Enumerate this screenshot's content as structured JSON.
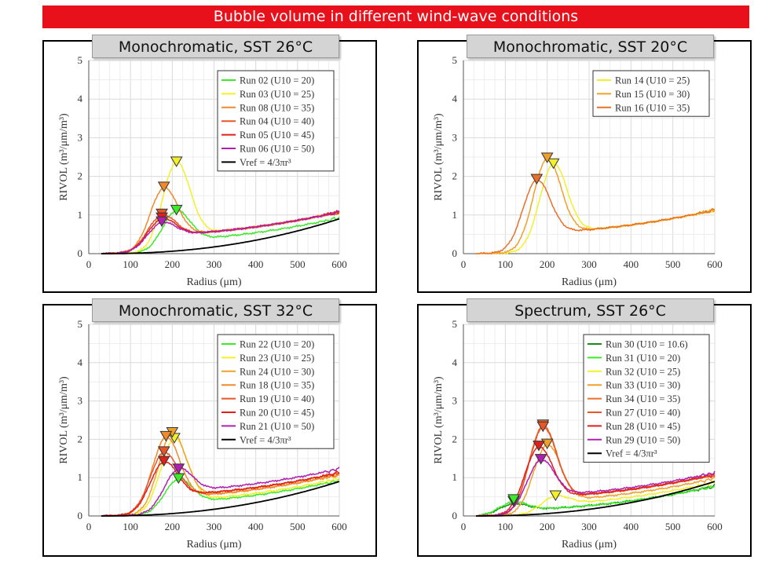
{
  "banner": "Bubble volume in different wind-wave conditions",
  "common": {
    "xlabel": "Radius (μm)",
    "ylabel": "RIVOL (m³/μm/m³)",
    "xlim": [
      0,
      600
    ],
    "ylim": [
      0,
      5
    ],
    "xticks": [
      "0",
      "100",
      "200",
      "300",
      "400",
      "500",
      "600"
    ],
    "yticks": [
      "0",
      "1",
      "2",
      "3",
      "4",
      "5"
    ]
  },
  "chart_data": [
    {
      "type": "line",
      "title": "Monochromatic, SST 26°C",
      "xlabel": "Radius (μm)",
      "ylabel": "RIVOL (m³/μm/m³)",
      "xlim": [
        0,
        600
      ],
      "ylim": [
        0,
        5
      ],
      "legend": "top-right",
      "series": [
        {
          "name": "Run 02 (U10 = 20)",
          "color": "#3cea2a",
          "peak": [
            210,
            1.05
          ],
          "valley": 0.3
        },
        {
          "name": "Run 03 (U10 = 25)",
          "color": "#f2f02a",
          "peak": [
            210,
            2.3
          ],
          "valley": 0.45
        },
        {
          "name": "Run 08 (U10 = 35)",
          "color": "#f08a2a",
          "peak": [
            180,
            1.65
          ],
          "valley": 0.45
        },
        {
          "name": "Run 04 (U10 = 40)",
          "color": "#e8552a",
          "peak": [
            175,
            0.95
          ],
          "valley": 0.45
        },
        {
          "name": "Run 05 (U10 = 45)",
          "color": "#e0201a",
          "peak": [
            175,
            0.85
          ],
          "valley": 0.45
        },
        {
          "name": "Run 06 (U10 = 50)",
          "color": "#b020b0",
          "peak": [
            175,
            0.75
          ],
          "valley": 0.45
        },
        {
          "name": "Vref = 4/3πr³",
          "color": "#000000",
          "ref": true
        }
      ]
    },
    {
      "type": "line",
      "title": "Monochromatic, SST 20°C",
      "xlabel": "Radius (μm)",
      "ylabel": "RIVOL (m³/μm/m³)",
      "xlim": [
        0,
        600
      ],
      "ylim": [
        0,
        5
      ],
      "legend": "top-right",
      "series": [
        {
          "name": "Run 14 (U10 = 25)",
          "color": "#f2f02a",
          "peak": [
            215,
            2.25
          ],
          "valley": 0.5
        },
        {
          "name": "Run 15 (U10 = 30)",
          "color": "#f0a02a",
          "peak": [
            200,
            2.4
          ],
          "valley": 0.5
        },
        {
          "name": "Run 16 (U10 = 35)",
          "color": "#e8702a",
          "peak": [
            175,
            1.85
          ],
          "valley": 0.5
        }
      ]
    },
    {
      "type": "line",
      "title": "Monochromatic, SST 32°C",
      "xlabel": "Radius (μm)",
      "ylabel": "RIVOL (m³/μm/m³)",
      "xlim": [
        0,
        600
      ],
      "ylim": [
        0,
        5
      ],
      "legend": "top-right",
      "series": [
        {
          "name": "Run 22 (U10 = 20)",
          "color": "#3cea2a",
          "peak": [
            215,
            0.9
          ],
          "valley": 0.3
        },
        {
          "name": "Run 23 (U10 = 25)",
          "color": "#f2f02a",
          "peak": [
            205,
            1.95
          ],
          "valley": 0.35
        },
        {
          "name": "Run 24 (U10 = 30)",
          "color": "#f0a02a",
          "peak": [
            200,
            2.1
          ],
          "valley": 0.45
        },
        {
          "name": "Run 18 (U10 = 35)",
          "color": "#f08a2a",
          "peak": [
            185,
            2.0
          ],
          "valley": 0.45
        },
        {
          "name": "Run 19 (U10 = 40)",
          "color": "#e8552a",
          "peak": [
            180,
            1.6
          ],
          "valley": 0.5
        },
        {
          "name": "Run 20 (U10 = 45)",
          "color": "#e0201a",
          "peak": [
            180,
            1.35
          ],
          "valley": 0.5
        },
        {
          "name": "Run 21 (U10 = 50)",
          "color": "#b020b0",
          "peak": [
            215,
            1.15
          ],
          "valley": 0.6
        },
        {
          "name": "Vref = 4/3πr³",
          "color": "#000000",
          "ref": true
        }
      ]
    },
    {
      "type": "line",
      "title": "Spectrum, SST 26°C",
      "xlabel": "Radius (μm)",
      "ylabel": "RIVOL (m³/μm/m³)",
      "xlim": [
        0,
        600
      ],
      "ylim": [
        0,
        5
      ],
      "legend": "top-right",
      "series": [
        {
          "name": "Run 30 (U10 = 10.6)",
          "color": "#1a8a1a",
          "peak": [
            120,
            0.3
          ],
          "valley": 0.15
        },
        {
          "name": "Run 31 (U10 = 20)",
          "color": "#3cea2a",
          "peak": [
            120,
            0.35
          ],
          "valley": 0.15
        },
        {
          "name": "Run 32 (U10 = 25)",
          "color": "#f2f02a",
          "peak": [
            220,
            0.45
          ],
          "valley": 0.25
        },
        {
          "name": "Run 33 (U10 = 30)",
          "color": "#f0a02a",
          "peak": [
            200,
            1.8
          ],
          "valley": 0.35
        },
        {
          "name": "Run 34 (U10 = 35)",
          "color": "#e8702a",
          "peak": [
            190,
            2.3
          ],
          "valley": 0.45
        },
        {
          "name": "Run 27 (U10 = 40)",
          "color": "#e8552a",
          "peak": [
            190,
            2.25
          ],
          "valley": 0.45
        },
        {
          "name": "Run 28 (U10 = 45)",
          "color": "#e0201a",
          "peak": [
            180,
            1.75
          ],
          "valley": 0.45
        },
        {
          "name": "Run 29 (U10 = 50)",
          "color": "#b020b0",
          "peak": [
            185,
            1.4
          ],
          "valley": 0.5
        },
        {
          "name": "Vref = 4/3πr³",
          "color": "#000000",
          "ref": true
        }
      ]
    }
  ]
}
